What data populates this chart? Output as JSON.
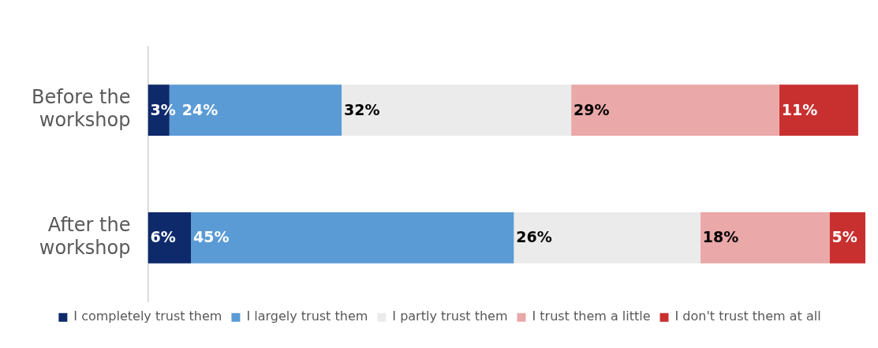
{
  "chart_data": {
    "type": "bar",
    "orientation": "horizontal",
    "stacked": true,
    "categories": [
      "Before the workshop",
      "After the workshop"
    ],
    "series": [
      {
        "name": "I completely trust them",
        "color": "#0e2a6b",
        "values": [
          3,
          6
        ],
        "value_labels": [
          "3%",
          "6%"
        ]
      },
      {
        "name": "I largely trust them",
        "color": "#5b9bd5",
        "values": [
          24,
          45
        ],
        "value_labels": [
          "24%",
          "45%"
        ]
      },
      {
        "name": "I partly trust them",
        "color": "#ebebeb",
        "values": [
          32,
          26
        ],
        "value_labels": [
          "32%",
          "26%"
        ]
      },
      {
        "name": "I trust them a little",
        "color": "#eaa8a8",
        "values": [
          29,
          18
        ],
        "value_labels": [
          "29%",
          "18%"
        ]
      },
      {
        "name": "I don't trust them at all",
        "color": "#c8302f",
        "values": [
          11,
          5
        ],
        "value_labels": [
          "11%",
          "5%"
        ]
      }
    ],
    "legend": "bottom",
    "grid": false
  }
}
